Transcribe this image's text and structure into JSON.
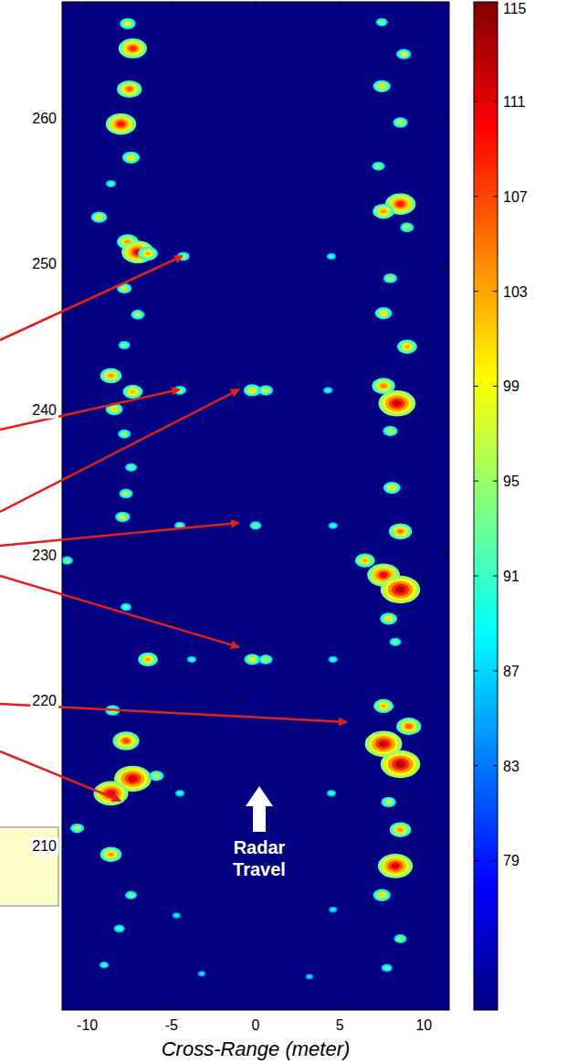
{
  "chart_data": {
    "type": "heatmap",
    "xlabel": "Cross-Range (meter)",
    "xlim": [
      -11.5,
      11.5
    ],
    "xticks": [
      -10,
      -5,
      0,
      5,
      10
    ],
    "ylim": [
      198.7,
      268.0
    ],
    "yticks": [
      210,
      220,
      230,
      240,
      250,
      260
    ],
    "colorbar_range": [
      72.7,
      115.2
    ],
    "colorbar_ticks": [
      79,
      83,
      87,
      91,
      95,
      99,
      103,
      107,
      111,
      115
    ],
    "annotation": "Radar Travel",
    "cells": [
      {
        "x": -7.6,
        "y": 266.5,
        "value": 100
      },
      {
        "x": -7.3,
        "y": 264.8,
        "value": 108
      },
      {
        "x": -7.5,
        "y": 262.0,
        "value": 106
      },
      {
        "x": -8.0,
        "y": 259.6,
        "value": 109
      },
      {
        "x": -7.4,
        "y": 257.3,
        "value": 101
      },
      {
        "x": -8.6,
        "y": 255.5,
        "value": 94
      },
      {
        "x": -9.3,
        "y": 253.2,
        "value": 100
      },
      {
        "x": -7.6,
        "y": 251.5,
        "value": 104
      },
      {
        "x": -7.0,
        "y": 250.8,
        "value": 110
      },
      {
        "x": -6.4,
        "y": 250.7,
        "value": 103
      },
      {
        "x": -7.8,
        "y": 248.3,
        "value": 99
      },
      {
        "x": -7.0,
        "y": 246.5,
        "value": 98
      },
      {
        "x": -7.8,
        "y": 244.4,
        "value": 96
      },
      {
        "x": -8.6,
        "y": 242.3,
        "value": 104
      },
      {
        "x": -7.3,
        "y": 241.2,
        "value": 103
      },
      {
        "x": -8.4,
        "y": 240.0,
        "value": 101
      },
      {
        "x": -7.8,
        "y": 238.3,
        "value": 97
      },
      {
        "x": -7.4,
        "y": 236.0,
        "value": 96
      },
      {
        "x": -7.7,
        "y": 234.2,
        "value": 98
      },
      {
        "x": -7.9,
        "y": 232.6,
        "value": 99
      },
      {
        "x": -11.2,
        "y": 229.6,
        "value": 96
      },
      {
        "x": -7.7,
        "y": 226.4,
        "value": 95
      },
      {
        "x": -6.4,
        "y": 222.8,
        "value": 103
      },
      {
        "x": -8.5,
        "y": 219.3,
        "value": 99
      },
      {
        "x": -7.7,
        "y": 217.2,
        "value": 107
      },
      {
        "x": -7.3,
        "y": 214.6,
        "value": 112
      },
      {
        "x": -8.6,
        "y": 213.6,
        "value": 111
      },
      {
        "x": -5.9,
        "y": 214.8,
        "value": 99
      },
      {
        "x": -10.6,
        "y": 211.2,
        "value": 98
      },
      {
        "x": -8.6,
        "y": 209.4,
        "value": 104
      },
      {
        "x": -7.4,
        "y": 206.6,
        "value": 96
      },
      {
        "x": -8.1,
        "y": 204.3,
        "value": 95
      },
      {
        "x": -9.0,
        "y": 201.8,
        "value": 93
      },
      {
        "x": 7.5,
        "y": 266.6,
        "value": 96
      },
      {
        "x": 8.8,
        "y": 264.4,
        "value": 99
      },
      {
        "x": 7.5,
        "y": 262.2,
        "value": 101
      },
      {
        "x": 8.6,
        "y": 259.7,
        "value": 99
      },
      {
        "x": 7.3,
        "y": 256.7,
        "value": 97
      },
      {
        "x": 8.6,
        "y": 254.1,
        "value": 109
      },
      {
        "x": 7.6,
        "y": 253.6,
        "value": 104
      },
      {
        "x": 9.0,
        "y": 252.5,
        "value": 98
      },
      {
        "x": 8.0,
        "y": 249.0,
        "value": 98
      },
      {
        "x": 7.6,
        "y": 246.6,
        "value": 101
      },
      {
        "x": 9.0,
        "y": 244.3,
        "value": 103
      },
      {
        "x": 7.6,
        "y": 241.6,
        "value": 105
      },
      {
        "x": 8.4,
        "y": 240.4,
        "value": 112
      },
      {
        "x": 8.0,
        "y": 238.5,
        "value": 99
      },
      {
        "x": 8.1,
        "y": 234.6,
        "value": 101
      },
      {
        "x": 8.6,
        "y": 231.6,
        "value": 105
      },
      {
        "x": 6.5,
        "y": 229.6,
        "value": 103
      },
      {
        "x": 7.6,
        "y": 228.6,
        "value": 110
      },
      {
        "x": 8.6,
        "y": 227.6,
        "value": 113
      },
      {
        "x": 7.9,
        "y": 225.6,
        "value": 101
      },
      {
        "x": 8.3,
        "y": 224.0,
        "value": 96
      },
      {
        "x": 7.6,
        "y": 219.6,
        "value": 103
      },
      {
        "x": 9.1,
        "y": 218.2,
        "value": 106
      },
      {
        "x": 7.6,
        "y": 217.0,
        "value": 112
      },
      {
        "x": 8.6,
        "y": 215.6,
        "value": 113
      },
      {
        "x": 7.9,
        "y": 213.0,
        "value": 99
      },
      {
        "x": 8.6,
        "y": 211.1,
        "value": 104
      },
      {
        "x": 8.3,
        "y": 208.6,
        "value": 111
      },
      {
        "x": 7.5,
        "y": 206.6,
        "value": 101
      },
      {
        "x": 8.6,
        "y": 203.6,
        "value": 97
      },
      {
        "x": 7.8,
        "y": 201.6,
        "value": 95
      },
      {
        "x": -4.3,
        "y": 250.5,
        "value": 97
      },
      {
        "x": 4.5,
        "y": 250.5,
        "value": 93
      },
      {
        "x": -4.5,
        "y": 241.3,
        "value": 97
      },
      {
        "x": -0.2,
        "y": 241.3,
        "value": 101
      },
      {
        "x": 0.6,
        "y": 241.3,
        "value": 99
      },
      {
        "x": 4.3,
        "y": 241.3,
        "value": 93
      },
      {
        "x": -4.5,
        "y": 232.0,
        "value": 95
      },
      {
        "x": 0.0,
        "y": 232.0,
        "value": 96
      },
      {
        "x": 4.6,
        "y": 232.0,
        "value": 93
      },
      {
        "x": -3.8,
        "y": 222.8,
        "value": 93
      },
      {
        "x": -0.2,
        "y": 222.8,
        "value": 100
      },
      {
        "x": 0.6,
        "y": 222.8,
        "value": 98
      },
      {
        "x": 4.6,
        "y": 222.8,
        "value": 93
      },
      {
        "x": -4.5,
        "y": 213.6,
        "value": 93
      },
      {
        "x": 4.5,
        "y": 213.6,
        "value": 93
      },
      {
        "x": -4.7,
        "y": 205.2,
        "value": 91
      },
      {
        "x": 4.6,
        "y": 205.6,
        "value": 91
      },
      {
        "x": -3.2,
        "y": 201.2,
        "value": 90
      },
      {
        "x": 3.2,
        "y": 201.0,
        "value": 90
      }
    ]
  }
}
